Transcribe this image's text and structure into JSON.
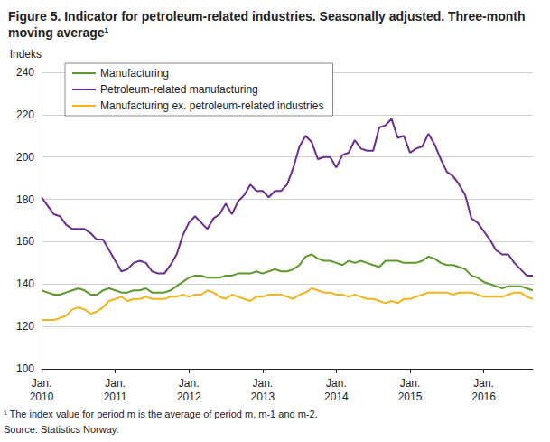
{
  "chart_data": {
    "type": "line",
    "title": "Figure 5. Indicator for petroleum-related industries. Seasonally adjusted. Three-month moving average¹",
    "y_label": "Indeks",
    "footnote": "¹ The index value for period m is the average of period m, m-1 and m-2.",
    "source": "Source: Statistics Norway.",
    "categories": [
      "Jan.\n2010",
      null,
      null,
      null,
      null,
      null,
      null,
      null,
      null,
      null,
      null,
      null,
      "Jan.\n2011",
      null,
      null,
      null,
      null,
      null,
      null,
      null,
      null,
      null,
      null,
      null,
      "Jan.\n2012",
      null,
      null,
      null,
      null,
      null,
      null,
      null,
      null,
      null,
      null,
      null,
      "Jan.\n2013",
      null,
      null,
      null,
      null,
      null,
      null,
      null,
      null,
      null,
      null,
      null,
      "Jan.\n2014",
      null,
      null,
      null,
      null,
      null,
      null,
      null,
      null,
      null,
      null,
      null,
      "Jan.\n2015",
      null,
      null,
      null,
      null,
      null,
      null,
      null,
      null,
      null,
      null,
      null,
      "Jan.\n2016",
      null,
      null,
      null,
      null,
      null,
      null,
      null,
      null
    ],
    "series": [
      {
        "name": "Manufacturing",
        "color": "#5a9a28",
        "values": [
          137,
          136,
          135,
          135,
          136,
          137,
          138,
          137,
          135,
          135,
          137,
          138,
          137,
          136,
          136,
          137,
          137,
          138,
          136,
          136,
          136,
          137,
          139,
          141,
          143,
          144,
          144,
          143,
          143,
          143,
          144,
          144,
          145,
          145,
          145,
          146,
          145,
          146,
          147,
          146,
          146,
          147,
          149,
          153,
          154,
          152,
          151,
          151,
          150,
          149,
          151,
          150,
          151,
          150,
          149,
          148,
          151,
          151,
          151,
          150,
          150,
          150,
          151,
          153,
          152,
          150,
          149,
          149,
          148,
          147,
          144,
          143,
          141,
          140,
          139,
          138,
          139,
          139,
          139,
          138,
          137
        ]
      },
      {
        "name": "Petroleum-related manufacturing",
        "color": "#6b2c91",
        "values": [
          181,
          177,
          173,
          172,
          168,
          166,
          166,
          166,
          164,
          161,
          161,
          156,
          151,
          146,
          147,
          150,
          151,
          150,
          146,
          145,
          145,
          149,
          154,
          163,
          169,
          172,
          169,
          166,
          171,
          173,
          178,
          173,
          179,
          182,
          187,
          184,
          184,
          181,
          184,
          184,
          187,
          195,
          205,
          210,
          207,
          199,
          200,
          200,
          195,
          201,
          202,
          208,
          204,
          203,
          203,
          214,
          215,
          218,
          209,
          210,
          202,
          204,
          205,
          211,
          206,
          199,
          193,
          191,
          187,
          182,
          171,
          169,
          165,
          161,
          156,
          154,
          154,
          150,
          147,
          144,
          144
        ]
      },
      {
        "name": "Manufacturing ex. petroleum-related industries",
        "color": "#f2b31c",
        "values": [
          123,
          123,
          123,
          124,
          125,
          128,
          129,
          128,
          126,
          127,
          129,
          132,
          133,
          134,
          132,
          133,
          133,
          134,
          133,
          133,
          133,
          134,
          134,
          135,
          134,
          135,
          135,
          137,
          136,
          134,
          133,
          135,
          134,
          133,
          132,
          134,
          134,
          135,
          135,
          135,
          134,
          133,
          135,
          136,
          138,
          137,
          136,
          136,
          135,
          135,
          134,
          135,
          134,
          133,
          133,
          132,
          131,
          132,
          131,
          133,
          133,
          134,
          135,
          136,
          136,
          136,
          136,
          135,
          136,
          136,
          136,
          135,
          134,
          134,
          134,
          134,
          135,
          136,
          136,
          134,
          133
        ]
      }
    ],
    "ylim": [
      100,
      240
    ],
    "yticks": [
      100,
      120,
      140,
      160,
      180,
      200,
      220,
      240
    ],
    "grid": true,
    "legend": "upper left"
  }
}
